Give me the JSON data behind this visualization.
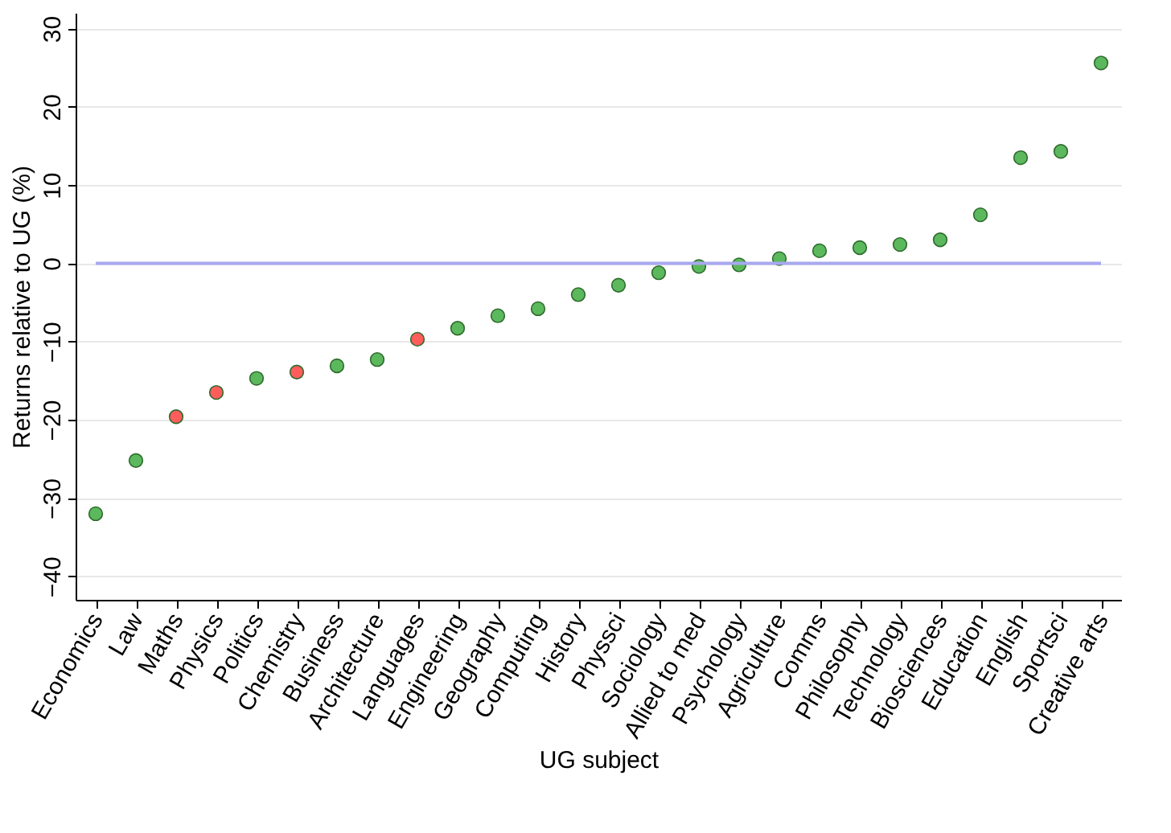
{
  "chart_data": {
    "type": "scatter",
    "xlabel": "UG subject",
    "ylabel": "Returns relative to UG (%)",
    "categories": [
      "Economics",
      "Law",
      "Maths",
      "Physics",
      "Politics",
      "Chemistry",
      "Business",
      "Architecture",
      "Languages",
      "Engineering",
      "Geography",
      "Computing",
      "History",
      "Physsci",
      "Sociology",
      "Allied to med",
      "Psychology",
      "Agriculture",
      "Comms",
      "Philosophy",
      "Technology",
      "Biosciences",
      "Education",
      "English",
      "Sportsci",
      "Creative arts"
    ],
    "values": [
      -32,
      -25.2,
      -19.6,
      -16.5,
      -14.7,
      -13.9,
      -13.1,
      -12.3,
      -9.7,
      -8.3,
      -6.7,
      -5.8,
      -4.0,
      -2.8,
      -1.2,
      -0.4,
      -0.2,
      0.6,
      1.6,
      2.0,
      2.4,
      3.0,
      6.2,
      13.5,
      14.3,
      25.6
    ],
    "colors": [
      "#5cb85c",
      "#5cb85c",
      "#ff5c5c",
      "#ff5c5c",
      "#5cb85c",
      "#ff5c5c",
      "#5cb85c",
      "#5cb85c",
      "#ff5c5c",
      "#5cb85c",
      "#5cb85c",
      "#5cb85c",
      "#5cb85c",
      "#5cb85c",
      "#5cb85c",
      "#5cb85c",
      "#5cb85c",
      "#5cb85c",
      "#5cb85c",
      "#5cb85c",
      "#5cb85c",
      "#5cb85c",
      "#5cb85c",
      "#5cb85c",
      "#5cb85c",
      "#5cb85c"
    ],
    "ylim": [
      -43,
      32
    ],
    "yticks": [
      -40,
      -30,
      -20,
      -10,
      0,
      10,
      20,
      30
    ],
    "ref_lines": [
      {
        "axis": "y",
        "value": 0,
        "color": "#a8a8f0"
      }
    ],
    "grid": "y",
    "marker": "circle"
  }
}
